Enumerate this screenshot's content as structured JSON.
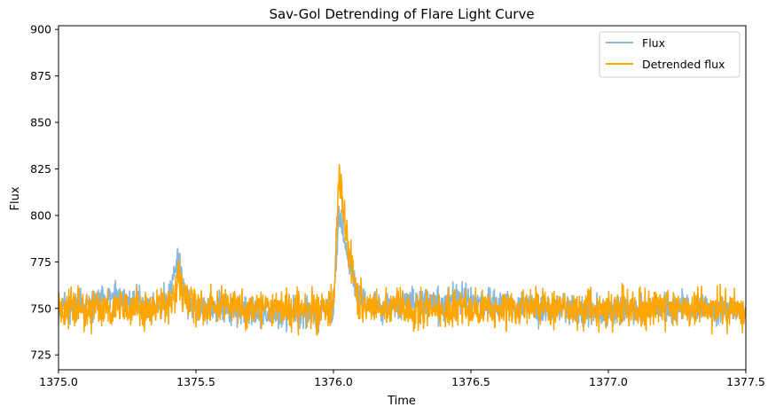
{
  "chart_data": {
    "type": "line",
    "title": "Sav-Gol Detrending of Flare Light Curve",
    "xlabel": "Time",
    "ylabel": "Flux",
    "xlim": [
      1375.0,
      1377.5
    ],
    "ylim": [
      717,
      902
    ],
    "x_ticks": [
      1375.0,
      1375.5,
      1376.0,
      1376.5,
      1377.0,
      1377.5
    ],
    "x_tick_labels": [
      "1375.0",
      "1375.5",
      "1376.0",
      "1376.5",
      "1377.0",
      "1377.5"
    ],
    "y_ticks": [
      725,
      750,
      775,
      800,
      825,
      850,
      875,
      900
    ],
    "y_tick_labels": [
      "725",
      "750",
      "775",
      "800",
      "825",
      "850",
      "875",
      "900"
    ],
    "grid": false,
    "legend": {
      "position": "top-right"
    },
    "series": [
      {
        "name": "Flux",
        "color": "#89b8dd",
        "x": [
          1375.0,
          1375.05,
          1375.1,
          1375.15,
          1375.2,
          1375.25,
          1375.3,
          1375.35,
          1375.4,
          1375.43,
          1375.44,
          1375.45,
          1375.47,
          1375.5,
          1375.55,
          1375.6,
          1375.65,
          1375.7,
          1375.75,
          1375.8,
          1375.85,
          1375.9,
          1375.95,
          1376.0,
          1376.01,
          1376.02,
          1376.03,
          1376.04,
          1376.05,
          1376.06,
          1376.07,
          1376.08,
          1376.1,
          1376.15,
          1376.2,
          1376.25,
          1376.3,
          1376.35,
          1376.4,
          1376.45,
          1376.5,
          1376.55,
          1376.6,
          1376.65,
          1376.7,
          1376.75,
          1376.8,
          1376.85,
          1376.9,
          1376.95,
          1377.0,
          1377.05,
          1377.1,
          1377.15,
          1377.2,
          1377.25,
          1377.3,
          1377.35,
          1377.4,
          1377.45,
          1377.5
        ],
        "y": [
          750,
          751,
          752,
          755,
          756,
          754,
          753,
          752,
          755,
          775,
          777,
          762,
          755,
          751,
          750,
          750,
          749,
          748,
          747,
          746,
          748,
          747,
          748,
          752,
          775,
          800,
          795,
          785,
          780,
          775,
          770,
          760,
          754,
          752,
          751,
          751,
          752,
          752,
          753,
          755,
          754,
          753,
          753,
          752,
          751,
          750,
          750,
          749,
          748,
          748,
          747,
          748,
          749,
          750,
          751,
          750,
          749,
          749,
          749,
          750,
          750
        ]
      },
      {
        "name": "Detrended flux",
        "color": "#ffa500",
        "x": [
          1375.0,
          1375.05,
          1375.1,
          1375.15,
          1375.2,
          1375.25,
          1375.3,
          1375.35,
          1375.4,
          1375.43,
          1375.44,
          1375.45,
          1375.47,
          1375.5,
          1375.55,
          1375.6,
          1375.65,
          1375.7,
          1375.75,
          1375.8,
          1375.85,
          1375.9,
          1375.95,
          1376.0,
          1376.01,
          1376.02,
          1376.03,
          1376.04,
          1376.05,
          1376.06,
          1376.07,
          1376.08,
          1376.1,
          1376.15,
          1376.2,
          1376.25,
          1376.3,
          1376.35,
          1376.4,
          1376.45,
          1376.5,
          1376.55,
          1376.6,
          1376.65,
          1376.7,
          1376.75,
          1376.8,
          1376.85,
          1376.9,
          1376.95,
          1377.0,
          1377.05,
          1377.1,
          1377.15,
          1377.2,
          1377.25,
          1377.3,
          1377.35,
          1377.4,
          1377.45,
          1377.5
        ],
        "y": [
          750,
          750,
          750,
          750,
          750,
          750,
          750,
          750,
          750,
          762,
          768,
          758,
          752,
          750,
          750,
          750,
          750,
          750,
          750,
          750,
          750,
          750,
          750,
          750,
          785,
          820,
          812,
          795,
          788,
          780,
          772,
          762,
          752,
          750,
          750,
          750,
          750,
          750,
          750,
          750,
          750,
          750,
          750,
          750,
          750,
          750,
          750,
          750,
          750,
          750,
          750,
          750,
          750,
          750,
          750,
          750,
          750,
          750,
          750,
          750,
          750
        ]
      }
    ]
  }
}
